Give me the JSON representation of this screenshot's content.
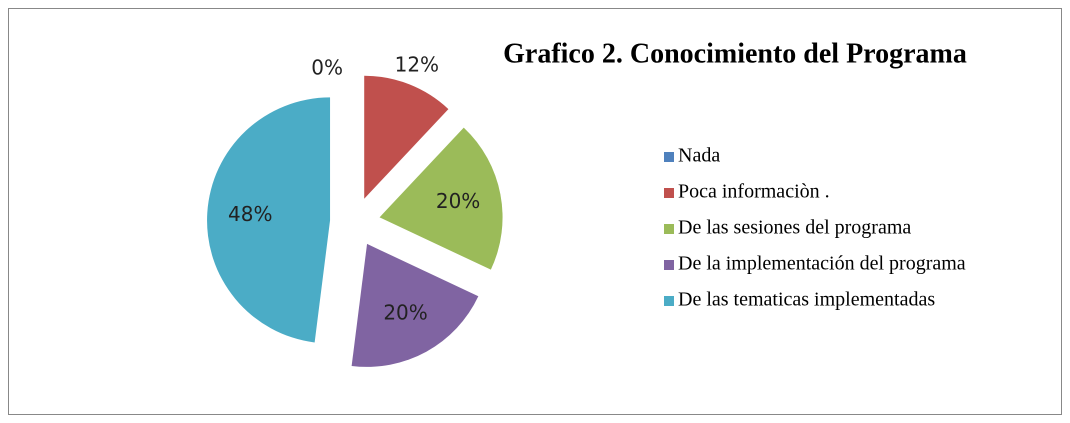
{
  "chart_data": {
    "type": "pie",
    "title": "Grafico 2. Conocimiento del Programa",
    "categories": [
      "Nada",
      "Poca informaciòn .",
      "De las sesiones del programa",
      "De la implementación del programa",
      "De las tematicas implementadas"
    ],
    "values": [
      0,
      12,
      20,
      20,
      48
    ],
    "value_labels": [
      "0%",
      "12%",
      "20%",
      "20%",
      "48%"
    ],
    "colors": [
      "#4f81bd",
      "#c0504d",
      "#9bbb59",
      "#8064a2",
      "#4bacc6"
    ],
    "legend": "right"
  }
}
